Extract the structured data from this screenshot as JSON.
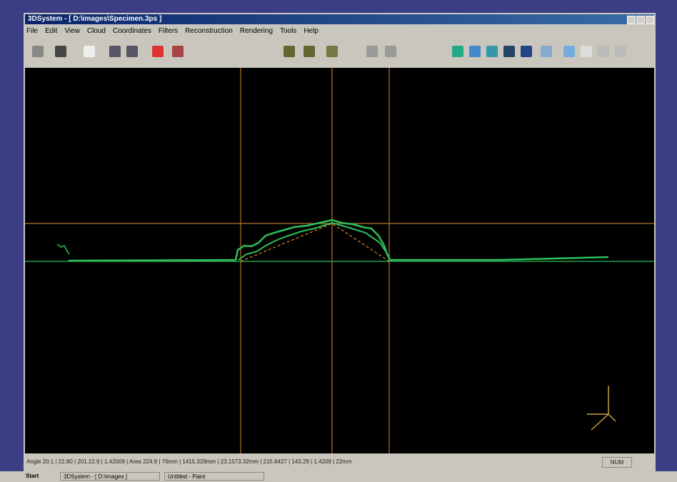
{
  "window": {
    "title": "3DSystem - [ D:\\images\\Specimen.3ps ]",
    "menu": [
      "File",
      "Edit",
      "View",
      "Cloud",
      "Coordinates",
      "Filters",
      "Reconstruction",
      "Rendering",
      "Tools",
      "Help"
    ]
  },
  "status_bar": {
    "text": "Angle 20.1 | 22.80 | 201.22.9 | 1.42009 | Area 224.9 | 76mm | 1415.329mm | 23.1573.32mm | 215.6427 | 143.29 | 1.4209 | 22mm",
    "indicator": "NUM"
  },
  "taskbar": {
    "start": "Start",
    "tasks": [
      "3DSystem - [ D:\\images ]",
      "Untitled - Paint"
    ]
  }
}
